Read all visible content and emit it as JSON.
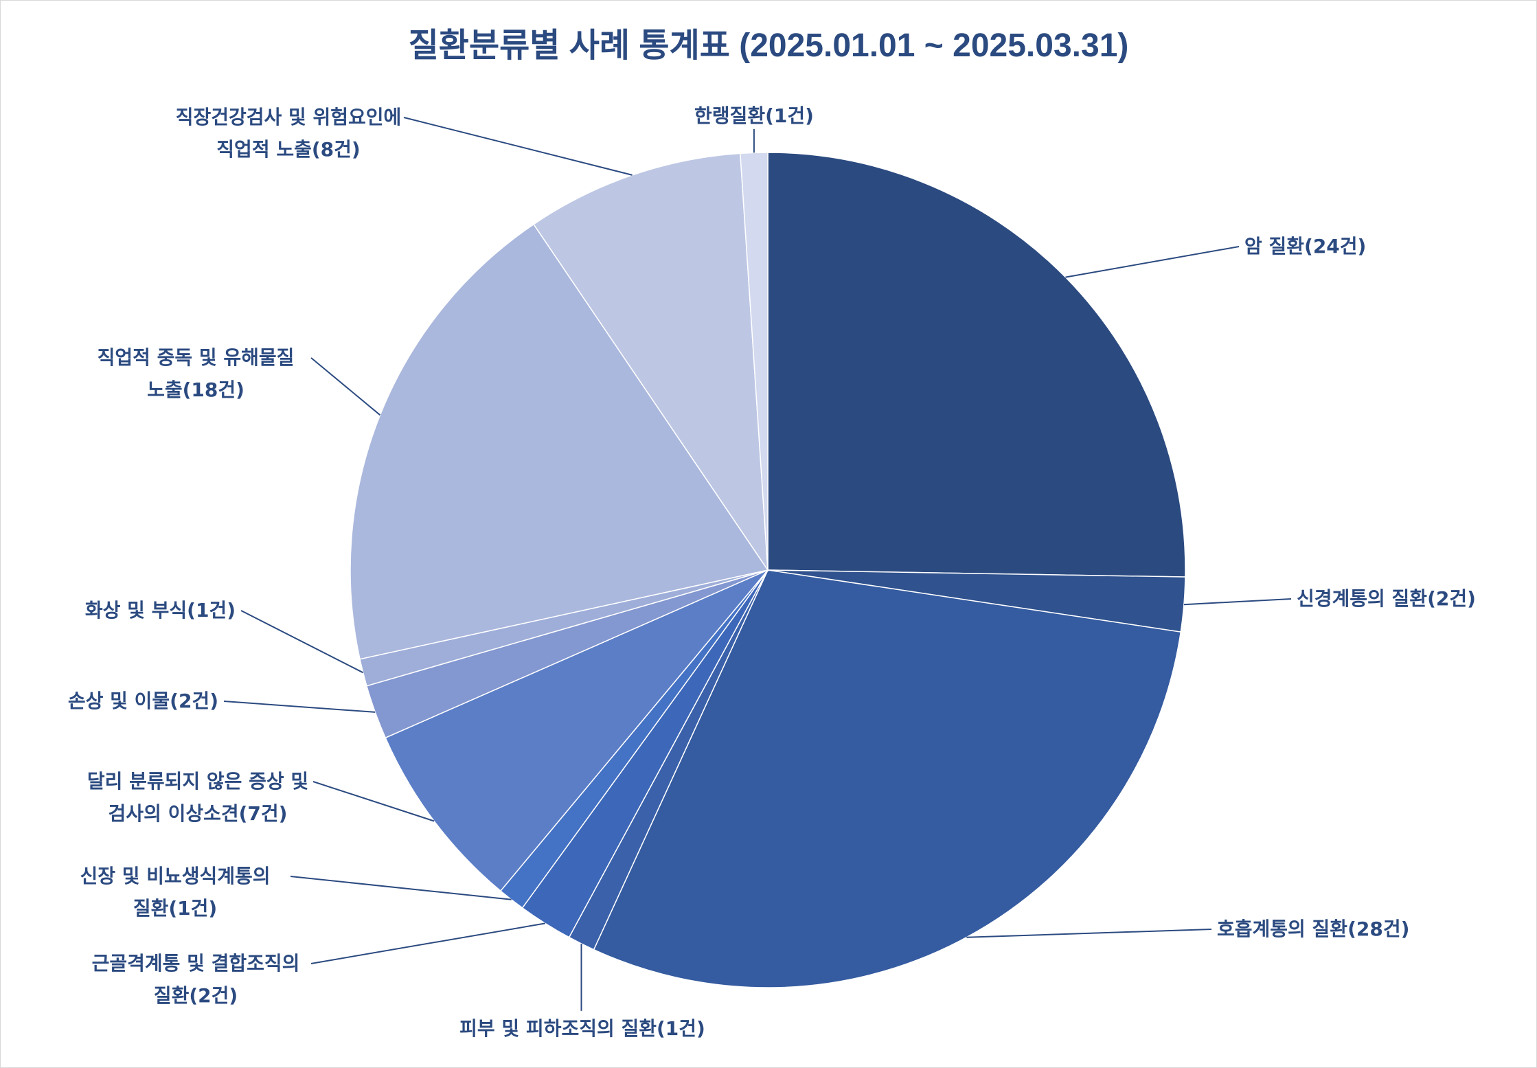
{
  "chart_data": {
    "type": "pie",
    "title": "질환분류별 사례 통계표 (2025.01.01 ~ 2025.03.31)",
    "start_angle_deg": 0,
    "direction": "clockwise",
    "slices": [
      {
        "name": "암 질환",
        "value": 24,
        "color": "#2b4a80",
        "label_lines": [
          "암 질환(24건)"
        ]
      },
      {
        "name": "신경계통의 질환",
        "value": 2,
        "color": "#30528e",
        "label_lines": [
          "신경계통의 질환(2건)"
        ]
      },
      {
        "name": "호흡계통의 질환",
        "value": 28,
        "color": "#355ba0",
        "label_lines": [
          "호흡계통의 질환(28건)"
        ]
      },
      {
        "name": "피부 및 피하조직의 질환",
        "value": 1,
        "color": "#3a61aa",
        "label_lines": [
          "피부 및 피하조직의 질환(1건)"
        ]
      },
      {
        "name": "근골격계통 및 결합조직의 질환",
        "value": 2,
        "color": "#3d67b8",
        "label_lines": [
          "근골격계통 및 결합조직의",
          "질환(2건)"
        ]
      },
      {
        "name": "신장 및 비뇨생식계통의 질환",
        "value": 1,
        "color": "#4472c4",
        "label_lines": [
          "신장 및 비뇨생식계통의",
          "질환(1건)"
        ]
      },
      {
        "name": "달리 분류되지 않은 증상 및 검사의 이상소견",
        "value": 7,
        "color": "#5b7ec7",
        "label_lines": [
          "달리 분류되지 않은 증상 및",
          "검사의 이상소견(7건)"
        ]
      },
      {
        "name": "손상 및 이물",
        "value": 2,
        "color": "#8397d0",
        "label_lines": [
          "손상 및 이물(2건)"
        ]
      },
      {
        "name": "화상 및 부식",
        "value": 1,
        "color": "#9eaed9",
        "label_lines": [
          "화상 및 부식(1건)"
        ]
      },
      {
        "name": "직업적 중독 및 유해물질 노출",
        "value": 18,
        "color": "#abb8dd",
        "label_lines": [
          "직업적 중독 및 유해물질",
          "노출(18건)"
        ]
      },
      {
        "name": "직장건강검사 및 위험요인에 직업적 노출",
        "value": 8,
        "color": "#bdc7e4",
        "label_lines": [
          "직장건강검사 및 위험요인에",
          "직업적 노출(8건)"
        ]
      },
      {
        "name": "한랭질환",
        "value": 1,
        "color": "#d3d9ee",
        "label_lines": [
          "한랭질환(1건)"
        ]
      }
    ]
  }
}
